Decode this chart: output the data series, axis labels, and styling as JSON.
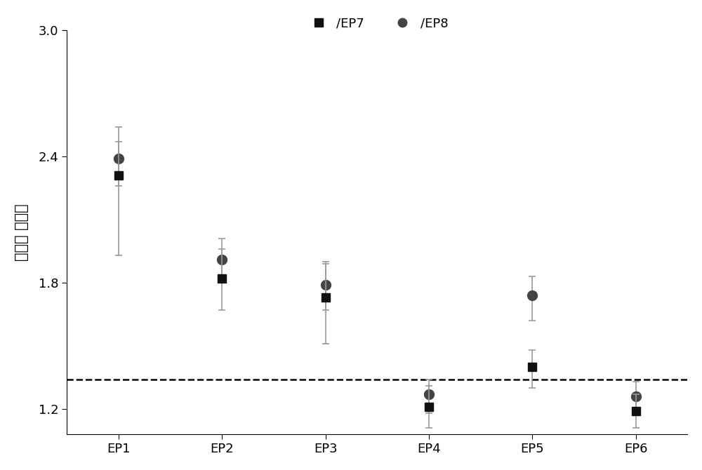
{
  "categories": [
    "EP1",
    "EP2",
    "EP3",
    "EP4",
    "EP5",
    "EP6"
  ],
  "ep7_values": [
    2.31,
    1.82,
    1.73,
    1.21,
    1.4,
    1.19
  ],
  "ep7_err_low": [
    0.38,
    0.15,
    0.22,
    0.1,
    0.1,
    0.08
  ],
  "ep7_err_high": [
    0.16,
    0.14,
    0.17,
    0.1,
    0.08,
    0.08
  ],
  "ep8_values": [
    2.39,
    1.91,
    1.79,
    1.27,
    1.74,
    1.26
  ],
  "ep8_err_low": [
    0.13,
    0.09,
    0.12,
    0.09,
    0.12,
    0.09
  ],
  "ep8_err_high": [
    0.15,
    0.1,
    0.1,
    0.07,
    0.09,
    0.07
  ],
  "dashed_line_y": 1.34,
  "ylabel": "相对表 达水平",
  "ylim": [
    1.08,
    3.0
  ],
  "yticks": [
    1.2,
    1.8,
    2.4,
    3.0
  ],
  "legend_ep7": "/EP7",
  "legend_ep8": "/EP8",
  "marker_square": "s",
  "marker_circle": "o",
  "color_ep7": "#111111",
  "color_ep8": "#444444",
  "ecolor": "#999999",
  "bg_color": "#ffffff",
  "fontsize_label": 15,
  "fontsize_tick": 13,
  "fontsize_legend": 13
}
